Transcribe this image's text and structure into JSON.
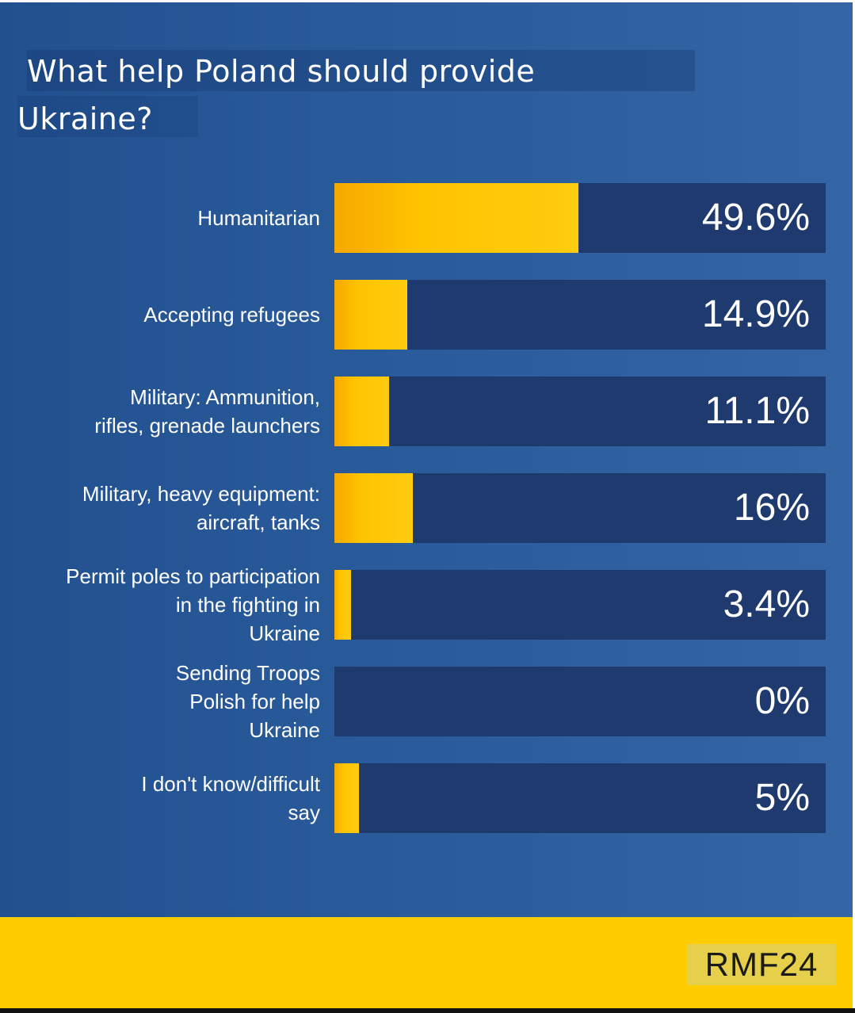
{
  "title_lines": [
    "What help Poland should provide",
    "Ukraine?"
  ],
  "chart_data": {
    "type": "bar",
    "orientation": "horizontal",
    "title": "What help Poland should provide Ukraine?",
    "categories": [
      "Humanitarian",
      "Accepting refugees",
      "Military: Ammunition,\nrifles, grenade launchers",
      "Military, heavy equipment:\naircraft, tanks",
      "Permit poles to participation\nin the fighting in\nUkraine",
      "Sending Troops\nPolish for help\nUkraine",
      "I don't know/difficult\nsay"
    ],
    "values": [
      49.6,
      14.9,
      11.1,
      16,
      3.4,
      0,
      5
    ],
    "value_labels": [
      "49.6%",
      "14.9%",
      "11.1%",
      "16%",
      "3.4%",
      "0%",
      "5%"
    ],
    "xlim": [
      0,
      100
    ],
    "unit": "%",
    "grid": false,
    "legend": "none"
  },
  "source": "RMF24",
  "colors": {
    "background": "#2a5c9c",
    "bar_track": "#1f3a6e",
    "bar_fill": "#ffc400",
    "footer": "#ffcc00",
    "text": "#ffffff"
  }
}
